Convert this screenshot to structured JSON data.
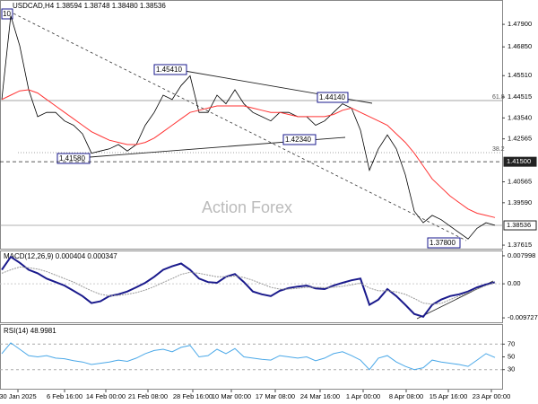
{
  "chart_data": [
    {
      "type": "line",
      "title": "USDCAD,H4 1.38594 1.38748 1.38480 1.38536",
      "watermark": "Action Forex",
      "annotations": [
        "10",
        "1.45410",
        "1.44140",
        "1.42340",
        "1.41580",
        "1.37800",
        "61.8",
        "38.2"
      ],
      "xlim": [
        -0.2,
        55.8
      ],
      "xticks": [
        {
          "value": 1.8,
          "label": "30 Jan 2025"
        },
        {
          "value": 7,
          "label": "6 Feb 16:00"
        },
        {
          "value": 11.6,
          "label": "14 Feb 00:00"
        },
        {
          "value": 16.3,
          "label": "21 Feb 08:00"
        },
        {
          "value": 21.3,
          "label": "28 Feb 16:00"
        },
        {
          "value": 25.6,
          "label": "10 Mar 00:00"
        },
        {
          "value": 30.5,
          "label": "17 Mar 08:00"
        },
        {
          "value": 35.5,
          "label": "24 Mar 16:00"
        },
        {
          "value": 40.3,
          "label": "1 Apr 00:00"
        },
        {
          "value": 45.1,
          "label": "8 Apr 08:00"
        },
        {
          "value": 49.8,
          "label": "15 Apr 16:00"
        },
        {
          "value": 54.6,
          "label": "23 Apr 00:00"
        }
      ],
      "ylim": [
        1.3745,
        1.4895
      ],
      "yticks": [
        {
          "value": 1.479,
          "label": "1.47900"
        },
        {
          "value": 1.4685,
          "label": "1.46850"
        },
        {
          "value": 1.4551,
          "label": "1.45510"
        },
        {
          "value": 1.44515,
          "label": "1.44515"
        },
        {
          "value": 1.4354,
          "label": "1.43540"
        },
        {
          "value": 1.42565,
          "label": "1.42565"
        },
        {
          "value": 1.40565,
          "label": "1.40565"
        },
        {
          "value": 1.3959,
          "label": "1.39590"
        },
        {
          "value": 1.37615,
          "label": "1.37615"
        }
      ],
      "price_lines": [
        {
          "value": 1.415,
          "label": "1.41500"
        },
        {
          "value": 1.38536,
          "label": "1.38536"
        }
      ],
      "series": [
        {
          "color": "#000000",
          "values": [
            1.444,
            1.483,
            1.469,
            1.4485,
            1.436,
            1.438,
            1.438,
            1.434,
            1.432,
            1.428,
            1.419,
            1.42,
            1.421,
            1.423,
            1.42,
            1.423,
            1.432,
            1.438,
            1.446,
            1.444,
            1.4505,
            1.455,
            1.438,
            1.438,
            1.446,
            1.442,
            1.4485,
            1.442,
            1.438,
            1.436,
            1.434,
            1.438,
            1.438,
            1.436,
            1.436,
            1.432,
            1.434,
            1.438,
            1.442,
            1.44,
            1.4297,
            1.411,
            1.421,
            1.4275,
            1.421,
            1.409,
            1.392,
            1.3866,
            1.39,
            1.388,
            1.385,
            1.382,
            1.379,
            1.384,
            1.3866,
            1.3854
          ]
        },
        {
          "color": "#ff3333",
          "values": [
            1.444,
            1.446,
            1.448,
            1.4485,
            1.447,
            1.444,
            1.441,
            1.438,
            1.435,
            1.432,
            1.429,
            1.427,
            1.425,
            1.424,
            1.423,
            1.423,
            1.424,
            1.426,
            1.429,
            1.432,
            1.435,
            1.438,
            1.439,
            1.44,
            1.441,
            1.441,
            1.441,
            1.441,
            1.44,
            1.439,
            1.438,
            1.438,
            1.437,
            1.436,
            1.436,
            1.436,
            1.436,
            1.437,
            1.439,
            1.44,
            1.438,
            1.436,
            1.434,
            1.432,
            1.428,
            1.424,
            1.419,
            1.413,
            1.407,
            1.403,
            1.399,
            1.396,
            1.393,
            1.391,
            1.39,
            1.389
          ]
        }
      ]
    },
    {
      "type": "line",
      "title": "MACD(12,26,9) 0.000404 0.000347",
      "ylim": [
        -0.01099,
        0.00926
      ],
      "yticks": [
        {
          "value": 0.007998,
          "label": "0.007998"
        },
        {
          "value": 0,
          "label": "0.00"
        },
        {
          "value": -0.009727,
          "label": "-0.009727"
        }
      ],
      "series": [
        {
          "color": "#1a1a8c",
          "values": [
            0.004,
            0.0077,
            0.006,
            0.004,
            0.003,
            0.0015,
            0.0005,
            -0.0005,
            -0.002,
            -0.0035,
            -0.0055,
            -0.005,
            -0.0035,
            -0.003,
            -0.0022,
            -0.001,
            0.0003,
            0.002,
            0.004,
            0.005,
            0.0058,
            0.004,
            0.0015,
            0.0005,
            0.0003,
            0.002,
            0.0028,
            0.0005,
            -0.0022,
            -0.003,
            -0.0035,
            -0.002,
            -0.0012,
            -0.0008,
            -0.0005,
            -0.0013,
            -0.0015,
            -0.0005,
            0.0003,
            0.001,
            0.0015,
            -0.006,
            -0.0045,
            -0.0015,
            -0.0035,
            -0.006,
            -0.0086,
            -0.0094,
            -0.006,
            -0.0045,
            -0.0035,
            -0.003,
            -0.0022,
            -0.001,
            -0.0002,
            0.000404
          ]
        },
        {
          "color": "#999999",
          "values": [
            0.003,
            0.004,
            0.0048,
            0.0046,
            0.0042,
            0.0035,
            0.0025,
            0.0015,
            0.0005,
            -0.0008,
            -0.002,
            -0.003,
            -0.0034,
            -0.0033,
            -0.003,
            -0.0025,
            -0.0018,
            -0.0008,
            0.0004,
            0.0015,
            0.0027,
            0.0033,
            0.003,
            0.0025,
            0.002,
            0.002,
            0.0022,
            0.0018,
            0.001,
            0,
            -0.001,
            -0.0015,
            -0.0015,
            -0.0013,
            -0.001,
            -0.001,
            -0.0011,
            -0.001,
            -0.0007,
            -0.0003,
            0.0002,
            -0.0012,
            -0.002,
            -0.002,
            -0.0023,
            -0.003,
            -0.0042,
            -0.0055,
            -0.0058,
            -0.0056,
            -0.0045,
            -0.0035,
            -0.0025,
            -0.0015,
            -0.0005,
            0.000347
          ]
        }
      ]
    },
    {
      "type": "line",
      "title": "RSI(14) 48.9981",
      "ylim": [
        0,
        100
      ],
      "yticks": [
        70,
        50,
        30
      ],
      "series": [
        {
          "color": "#4aa8e8",
          "values": [
            55,
            72,
            62,
            52,
            50,
            52,
            48,
            47,
            44,
            42,
            38,
            40,
            42,
            45,
            43,
            48,
            55,
            60,
            62,
            58,
            65,
            68,
            50,
            52,
            62,
            55,
            63,
            50,
            48,
            46,
            45,
            52,
            50,
            48,
            50,
            44,
            48,
            55,
            58,
            52,
            45,
            30,
            48,
            52,
            42,
            35,
            30,
            33,
            45,
            42,
            40,
            38,
            35,
            45,
            55,
            48.9981
          ]
        }
      ]
    }
  ]
}
